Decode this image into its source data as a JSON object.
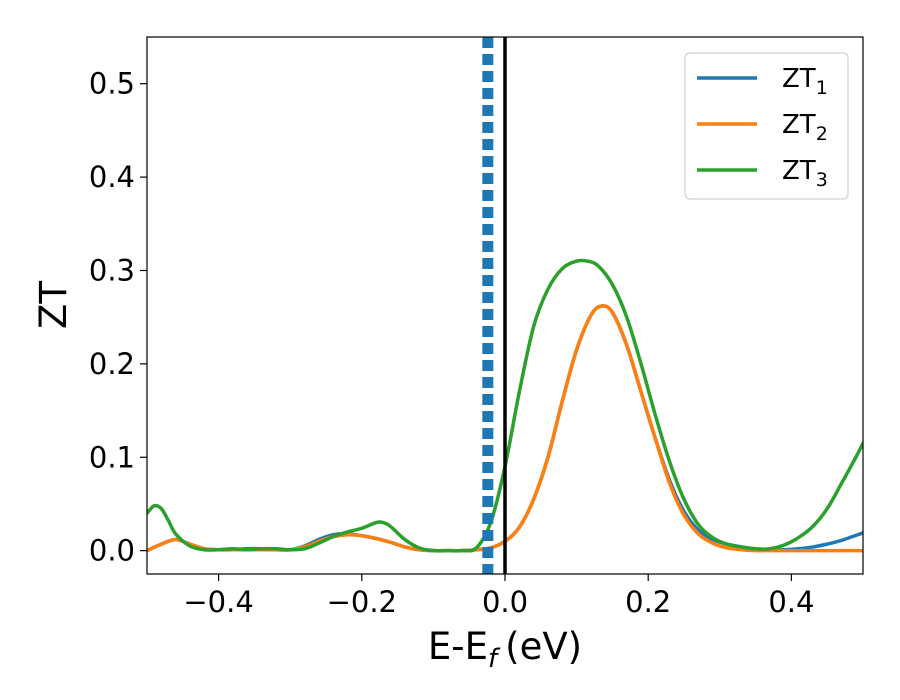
{
  "chart_data": {
    "type": "line",
    "xlabel": "E-E",
    "xlabel_sub": "f",
    "xlabel_unit": "(eV)",
    "ylabel": "ZT",
    "xlim": [
      -0.5,
      0.5
    ],
    "ylim": [
      -0.025,
      0.55
    ],
    "xticks": [
      -0.4,
      -0.2,
      0.0,
      0.2,
      0.4
    ],
    "xtick_labels": [
      "−0.4",
      "−0.2",
      "0.0",
      "0.2",
      "0.4"
    ],
    "yticks": [
      0.0,
      0.1,
      0.2,
      0.3,
      0.4,
      0.5
    ],
    "ytick_labels": [
      "0.0",
      "0.1",
      "0.2",
      "0.3",
      "0.4",
      "0.5"
    ],
    "grid": false,
    "legend_position": "top-right",
    "vlines": [
      {
        "x": -0.024,
        "style": "dashed",
        "color": "#1f77b4"
      },
      {
        "x": 0.0,
        "style": "solid",
        "color": "#000000"
      }
    ],
    "series": [
      {
        "name": "ZT",
        "sub": "1",
        "color": "#1f77b4",
        "x": [
          -0.5,
          -0.48,
          -0.46,
          -0.44,
          -0.42,
          -0.4,
          -0.38,
          -0.36,
          -0.34,
          -0.32,
          -0.3,
          -0.28,
          -0.26,
          -0.24,
          -0.22,
          -0.2,
          -0.18,
          -0.16,
          -0.14,
          -0.12,
          -0.1,
          -0.08,
          -0.06,
          -0.04,
          -0.02,
          0.0,
          0.02,
          0.04,
          0.06,
          0.08,
          0.1,
          0.12,
          0.135,
          0.15,
          0.17,
          0.19,
          0.21,
          0.23,
          0.25,
          0.27,
          0.29,
          0.31,
          0.33,
          0.35,
          0.37,
          0.39,
          0.41,
          0.43,
          0.45,
          0.47,
          0.5
        ],
        "y": [
          0.0,
          0.007,
          0.012,
          0.007,
          0.002,
          0.001,
          0.001,
          0.002,
          0.002,
          0.001,
          0.001,
          0.005,
          0.012,
          0.017,
          0.018,
          0.016,
          0.013,
          0.009,
          0.004,
          0.001,
          0.0,
          0.0,
          0.0,
          0.001,
          0.003,
          0.01,
          0.025,
          0.055,
          0.1,
          0.16,
          0.215,
          0.252,
          0.262,
          0.255,
          0.22,
          0.17,
          0.12,
          0.075,
          0.042,
          0.022,
          0.012,
          0.007,
          0.004,
          0.002,
          0.001,
          0.001,
          0.002,
          0.004,
          0.007,
          0.011,
          0.019
        ]
      },
      {
        "name": "ZT",
        "sub": "2",
        "color": "#ff7f0e",
        "x": [
          -0.5,
          -0.48,
          -0.46,
          -0.44,
          -0.42,
          -0.4,
          -0.38,
          -0.36,
          -0.34,
          -0.32,
          -0.3,
          -0.28,
          -0.26,
          -0.24,
          -0.22,
          -0.2,
          -0.18,
          -0.16,
          -0.14,
          -0.12,
          -0.1,
          -0.08,
          -0.06,
          -0.04,
          -0.02,
          0.0,
          0.02,
          0.04,
          0.06,
          0.08,
          0.1,
          0.12,
          0.135,
          0.15,
          0.17,
          0.19,
          0.21,
          0.23,
          0.25,
          0.27,
          0.29,
          0.31,
          0.33,
          0.35,
          0.37,
          0.39,
          0.41,
          0.43,
          0.45,
          0.47,
          0.5
        ],
        "y": [
          0.0,
          0.007,
          0.012,
          0.007,
          0.002,
          0.001,
          0.001,
          0.001,
          0.001,
          0.001,
          0.001,
          0.004,
          0.01,
          0.015,
          0.017,
          0.016,
          0.013,
          0.009,
          0.004,
          0.001,
          0.0,
          0.0,
          0.0,
          0.001,
          0.003,
          0.01,
          0.025,
          0.055,
          0.1,
          0.16,
          0.215,
          0.252,
          0.262,
          0.255,
          0.22,
          0.17,
          0.12,
          0.072,
          0.038,
          0.018,
          0.008,
          0.003,
          0.001,
          0.0,
          0.0,
          0.0,
          0.0,
          0.0,
          0.0,
          0.0,
          0.0
        ]
      },
      {
        "name": "ZT",
        "sub": "3",
        "color": "#2ca02c",
        "x": [
          -0.5,
          -0.49,
          -0.48,
          -0.47,
          -0.46,
          -0.44,
          -0.42,
          -0.4,
          -0.38,
          -0.36,
          -0.34,
          -0.32,
          -0.3,
          -0.28,
          -0.26,
          -0.24,
          -0.22,
          -0.2,
          -0.18,
          -0.17,
          -0.16,
          -0.14,
          -0.12,
          -0.1,
          -0.08,
          -0.06,
          -0.04,
          -0.02,
          0.0,
          0.02,
          0.04,
          0.06,
          0.08,
          0.1,
          0.115,
          0.13,
          0.15,
          0.17,
          0.19,
          0.21,
          0.23,
          0.25,
          0.27,
          0.29,
          0.31,
          0.33,
          0.35,
          0.37,
          0.39,
          0.41,
          0.43,
          0.45,
          0.47,
          0.49,
          0.5
        ],
        "y": [
          0.04,
          0.048,
          0.045,
          0.032,
          0.018,
          0.005,
          0.001,
          0.001,
          0.002,
          0.001,
          0.002,
          0.002,
          0.001,
          0.002,
          0.008,
          0.015,
          0.02,
          0.024,
          0.03,
          0.03,
          0.026,
          0.012,
          0.003,
          0.0,
          0.0,
          0.0,
          0.003,
          0.03,
          0.09,
          0.17,
          0.24,
          0.28,
          0.302,
          0.31,
          0.31,
          0.305,
          0.285,
          0.25,
          0.2,
          0.145,
          0.095,
          0.055,
          0.028,
          0.014,
          0.007,
          0.004,
          0.002,
          0.002,
          0.006,
          0.014,
          0.026,
          0.045,
          0.072,
          0.1,
          0.115
        ]
      }
    ]
  }
}
